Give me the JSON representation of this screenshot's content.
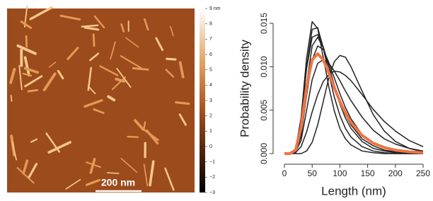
{
  "chart_data": [
    {
      "type": "image",
      "scale_bar": "200 nm",
      "colorbar_lim": [
        -3,
        9
      ],
      "colorbar_ticks": [
        {
          "value": 9,
          "label": "9 nm"
        },
        8,
        7,
        6,
        5,
        4,
        3,
        2,
        1,
        0,
        {
          "value": -1,
          "label": "−1"
        },
        {
          "value": -2,
          "label": "−2"
        },
        {
          "value": -3,
          "label": "−3"
        }
      ]
    },
    {
      "type": "line",
      "xlabel": "Length (nm)",
      "ylabel": "Probability density",
      "x": [
        0,
        10,
        20,
        30,
        40,
        50,
        60,
        70,
        80,
        90,
        100,
        110,
        120,
        140,
        160,
        180,
        200,
        225,
        250
      ],
      "xlim": [
        0,
        250
      ],
      "xticks": [
        0,
        50,
        100,
        150,
        200,
        250
      ],
      "ylim": [
        0,
        0.015
      ],
      "yticks": [
        {
          "value": 0,
          "label": "0.000"
        },
        {
          "value": 0.005,
          "label": "0.005"
        },
        {
          "value": 0.01,
          "label": "0.010"
        },
        {
          "value": 0.015,
          "label": "0.015"
        }
      ],
      "series": [
        {
          "color": "#222222",
          "values": [
            0,
            0,
            0.0003,
            0.0041,
            0.011,
            0.0152,
            0.0144,
            0.0111,
            0.0077,
            0.0049,
            0.0029,
            0.0017,
            0.001,
            0.0003,
            0.0001,
            0,
            0,
            0,
            0
          ]
        },
        {
          "color": "#222222",
          "values": [
            0,
            0,
            0.0003,
            0.0035,
            0.01,
            0.0143,
            0.0145,
            0.0122,
            0.0092,
            0.0065,
            0.0044,
            0.0029,
            0.0019,
            0.0008,
            0.0003,
            0.0001,
            0,
            0,
            0
          ]
        },
        {
          "color": "#222222",
          "values": [
            0,
            0,
            0.0005,
            0.004,
            0.0098,
            0.0134,
            0.0137,
            0.0123,
            0.0101,
            0.0079,
            0.006,
            0.0045,
            0.0033,
            0.0017,
            0.0009,
            0.0004,
            0.0002,
            0.0001,
            0
          ]
        },
        {
          "color": "#222222",
          "values": [
            0,
            0,
            0.0002,
            0.0025,
            0.008,
            0.0124,
            0.0134,
            0.0122,
            0.01,
            0.0077,
            0.0057,
            0.0041,
            0.0029,
            0.0014,
            0.0006,
            0.0003,
            0.0001,
            0,
            0
          ]
        },
        {
          "color": "#222222",
          "values": [
            0,
            0,
            0.0002,
            0.002,
            0.0067,
            0.0108,
            0.0124,
            0.012,
            0.0105,
            0.0087,
            0.0069,
            0.0053,
            0.004,
            0.0022,
            0.0012,
            0.0006,
            0.0003,
            0.0001,
            0
          ]
        },
        {
          "color": "#222222",
          "values": [
            0,
            0,
            0,
            0,
            0.0003,
            0.0013,
            0.0033,
            0.006,
            0.0087,
            0.0106,
            0.0113,
            0.0111,
            0.01,
            0.0072,
            0.0045,
            0.0026,
            0.0014,
            0.0006,
            0.0002
          ]
        },
        {
          "color": "#222222",
          "values": [
            0,
            0,
            0.0002,
            0.0015,
            0.005,
            0.0085,
            0.0104,
            0.0108,
            0.0104,
            0.0095,
            0.0084,
            0.0072,
            0.0061,
            0.0042,
            0.0027,
            0.0017,
            0.0011,
            0.0006,
            0.0003
          ]
        },
        {
          "color": "#222222",
          "values": [
            0,
            0,
            0.0001,
            0.0008,
            0.0025,
            0.0048,
            0.0068,
            0.0083,
            0.0091,
            0.0095,
            0.0094,
            0.009,
            0.0084,
            0.0068,
            0.0051,
            0.0037,
            0.0026,
            0.0015,
            0.0008
          ]
        },
        {
          "color": "#ee7444",
          "values": [
            0,
            0,
            0.0004,
            0.003,
            0.0077,
            0.0108,
            0.0115,
            0.0108,
            0.0093,
            0.0076,
            0.006,
            0.0047,
            0.0036,
            0.0021,
            0.0012,
            0.0007,
            0.0004,
            0.0002,
            0.0001
          ]
        }
      ]
    }
  ]
}
